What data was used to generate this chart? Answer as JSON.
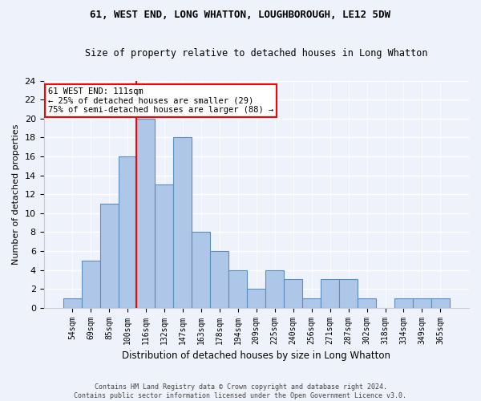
{
  "title": "61, WEST END, LONG WHATTON, LOUGHBOROUGH, LE12 5DW",
  "subtitle": "Size of property relative to detached houses in Long Whatton",
  "xlabel": "Distribution of detached houses by size in Long Whatton",
  "ylabel": "Number of detached properties",
  "footer_line1": "Contains HM Land Registry data © Crown copyright and database right 2024.",
  "footer_line2": "Contains public sector information licensed under the Open Government Licence v3.0.",
  "bar_labels": [
    "54sqm",
    "69sqm",
    "85sqm",
    "100sqm",
    "116sqm",
    "132sqm",
    "147sqm",
    "163sqm",
    "178sqm",
    "194sqm",
    "209sqm",
    "225sqm",
    "240sqm",
    "256sqm",
    "271sqm",
    "287sqm",
    "302sqm",
    "318sqm",
    "334sqm",
    "349sqm",
    "365sqm"
  ],
  "bar_values": [
    1,
    5,
    11,
    16,
    20,
    13,
    18,
    8,
    6,
    4,
    2,
    4,
    3,
    1,
    3,
    3,
    1,
    0,
    1,
    1,
    1
  ],
  "bar_color": "#aec6e8",
  "bar_edge_color": "#5a8fc2",
  "ylim": [
    0,
    24
  ],
  "yticks": [
    0,
    2,
    4,
    6,
    8,
    10,
    12,
    14,
    16,
    18,
    20,
    22,
    24
  ],
  "vline_index": 3.5,
  "vline_color": "red",
  "annotation_text": "61 WEST END: 111sqm\n← 25% of detached houses are smaller (29)\n75% of semi-detached houses are larger (88) →",
  "annotation_box_color": "white",
  "annotation_box_edge": "red",
  "background_color": "#eef2fb",
  "grid_color": "white"
}
